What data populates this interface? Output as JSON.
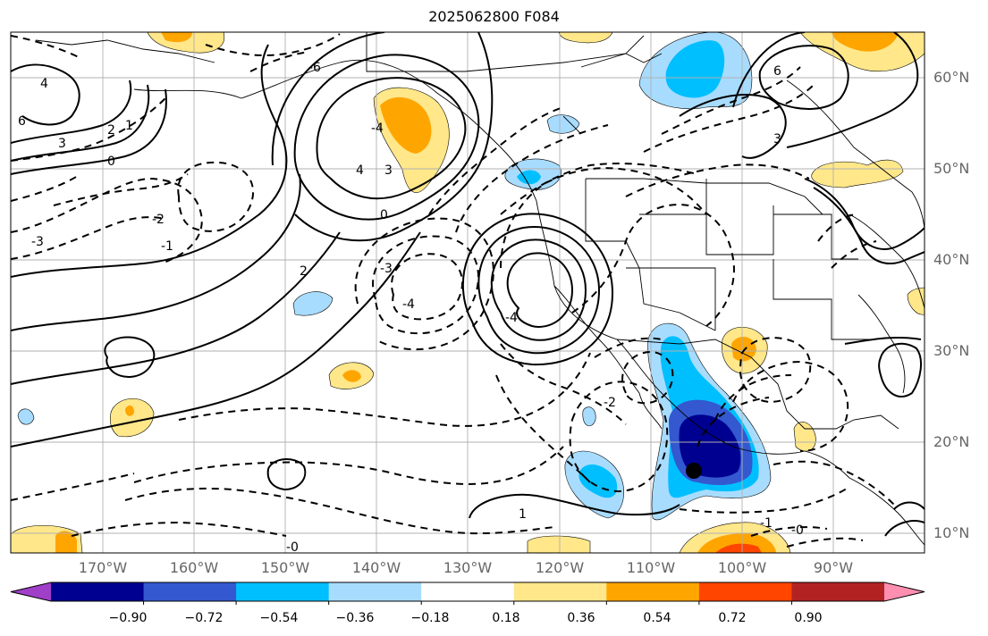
{
  "title": "2025062800 F084",
  "lat_labels": [
    {
      "text": "60°N",
      "lat": 60
    },
    {
      "text": "50°N",
      "lat": 50
    },
    {
      "text": "40°N",
      "lat": 40
    },
    {
      "text": "30°N",
      "lat": 30
    },
    {
      "text": "20°N",
      "lat": 20
    },
    {
      "text": "10°N",
      "lat": 10
    }
  ],
  "lon_labels": [
    {
      "text": "170°W",
      "lon": -170
    },
    {
      "text": "160°W",
      "lon": -160
    },
    {
      "text": "150°W",
      "lon": -150
    },
    {
      "text": "140°W",
      "lon": -140
    },
    {
      "text": "130°W",
      "lon": -130
    },
    {
      "text": "120°W",
      "lon": -120
    },
    {
      "text": "110°W",
      "lon": -110
    },
    {
      "text": "100°W",
      "lon": -100
    },
    {
      "text": "90°W",
      "lon": -90
    }
  ],
  "colorbar": {
    "colors": [
      "#a040c8",
      "#000090",
      "#3358d0",
      "#00bfff",
      "#a8dcff",
      "#ffffff",
      "#ffe78a",
      "#ffa500",
      "#ff4500",
      "#b22222",
      "#ff8fb0"
    ],
    "tick_labels": [
      "−0.90",
      "−0.72",
      "−0.54",
      "−0.36",
      "−0.18",
      "0.18",
      "0.36",
      "0.54",
      "0.72",
      "0.90"
    ]
  },
  "contour_labels": [
    "4",
    "2",
    "6",
    "3",
    "1",
    "0",
    "-1",
    "-2",
    "-3",
    "-4",
    "-0",
    "-6",
    "0",
    "3",
    "-4",
    "-3",
    "2",
    "-2",
    "1",
    "-1",
    "4",
    "3",
    "6",
    "-4",
    "-0"
  ],
  "marker": {
    "type": "black-dot",
    "lon": -106,
    "lat": 17
  }
}
